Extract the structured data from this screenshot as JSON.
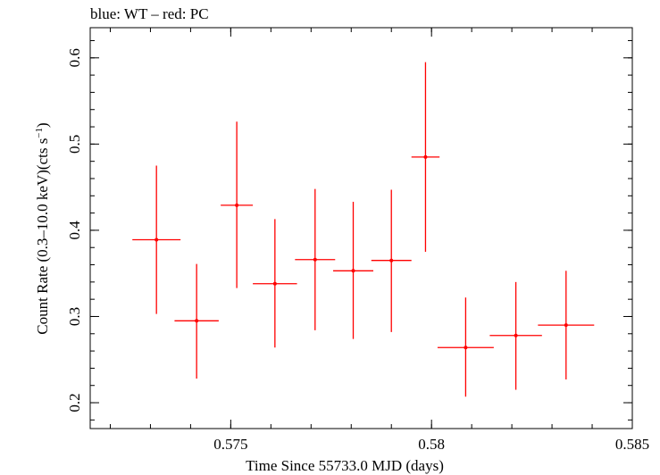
{
  "chart_data": {
    "type": "scatter",
    "title": "blue: WT – red: PC",
    "xlabel": "Time Since 55733.0 MJD (days)",
    "ylabel": "Count Rate (0.3–10.0 keV)(cts s",
    "ylabel_sup": "−1",
    "ylabel_close": ")",
    "xlim": [
      0.5715,
      0.585
    ],
    "ylim": [
      0.17,
      0.635
    ],
    "x_ticks": [
      {
        "value": 0.575,
        "label": "0.575"
      },
      {
        "value": 0.58,
        "label": "0.58"
      },
      {
        "value": 0.585,
        "label": "0.585"
      }
    ],
    "y_ticks": [
      {
        "value": 0.2,
        "label": "0.2"
      },
      {
        "value": 0.3,
        "label": "0.3"
      },
      {
        "value": 0.4,
        "label": "0.4"
      },
      {
        "value": 0.5,
        "label": "0.5"
      },
      {
        "value": 0.6,
        "label": "0.6"
      }
    ],
    "x_minor_step": 0.001,
    "y_minor_step": 0.02,
    "grid": false,
    "series": [
      {
        "name": "PC",
        "color": "#ff0000",
        "points": [
          {
            "x": 0.57315,
            "y": 0.389,
            "xerr": 0.0006,
            "ylo": 0.303,
            "yhi": 0.475
          },
          {
            "x": 0.57415,
            "y": 0.295,
            "xerr": 0.00055,
            "ylo": 0.228,
            "yhi": 0.361
          },
          {
            "x": 0.57515,
            "y": 0.429,
            "xerr": 0.0004,
            "ylo": 0.333,
            "yhi": 0.526
          },
          {
            "x": 0.5761,
            "y": 0.338,
            "xerr": 0.00055,
            "ylo": 0.264,
            "yhi": 0.413
          },
          {
            "x": 0.5771,
            "y": 0.366,
            "xerr": 0.0005,
            "ylo": 0.284,
            "yhi": 0.448
          },
          {
            "x": 0.57805,
            "y": 0.353,
            "xerr": 0.0005,
            "ylo": 0.274,
            "yhi": 0.433
          },
          {
            "x": 0.579,
            "y": 0.365,
            "xerr": 0.0005,
            "ylo": 0.282,
            "yhi": 0.447
          },
          {
            "x": 0.57985,
            "y": 0.485,
            "xerr": 0.00035,
            "ylo": 0.375,
            "yhi": 0.595
          },
          {
            "x": 0.58085,
            "y": 0.264,
            "xerr": 0.0007,
            "ylo": 0.207,
            "yhi": 0.322
          },
          {
            "x": 0.5821,
            "y": 0.278,
            "xerr": 0.00065,
            "ylo": 0.215,
            "yhi": 0.34
          },
          {
            "x": 0.58335,
            "y": 0.29,
            "xerr": 0.0007,
            "ylo": 0.227,
            "yhi": 0.353
          }
        ]
      }
    ]
  }
}
